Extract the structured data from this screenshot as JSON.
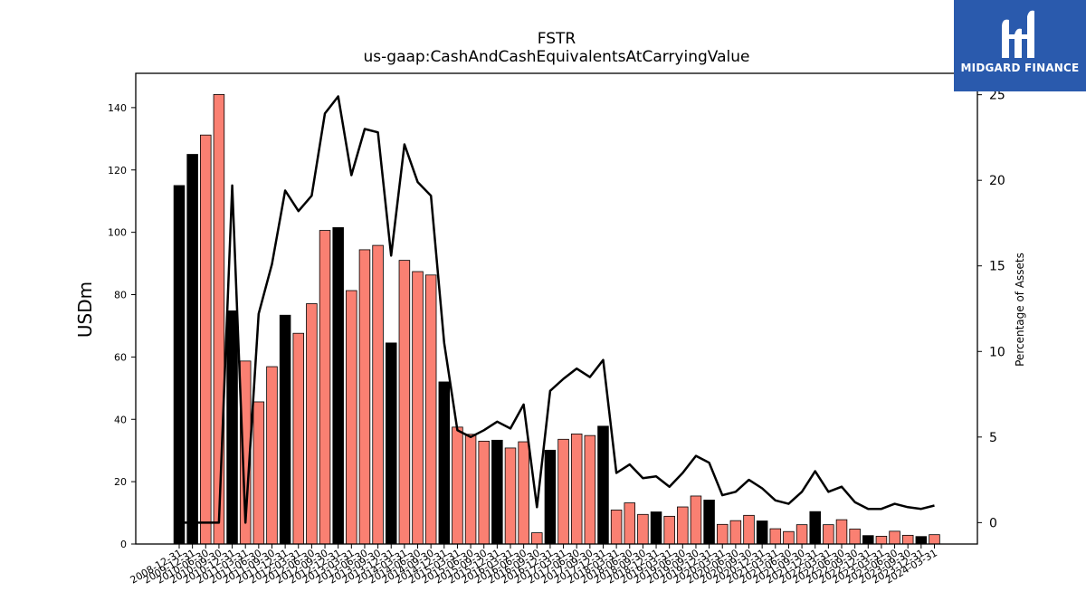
{
  "logo": {
    "text": "MIDGARD FINANCE",
    "bg": "#2a5aad"
  },
  "chart_data": {
    "type": "bar",
    "title": "FSTR",
    "subtitle": "us-gaap:CashAndCashEquivalentsAtCarryingValue",
    "ylabel": "USDm",
    "y2label": "Percentage of Assets",
    "ylim": [
      0,
      151
    ],
    "y2lim": [
      -1.25,
      26.25
    ],
    "yticks": [
      0,
      20,
      40,
      60,
      80,
      100,
      120,
      140
    ],
    "y2ticks": [
      0,
      5,
      10,
      15,
      20,
      25
    ],
    "colors": {
      "q4": "#000000",
      "other": "#fa8072",
      "line": "#000000"
    },
    "categories": [
      "2008-12-31",
      "2009-12-31",
      "2010-06-30",
      "2010-09-30",
      "2010-12-31",
      "2011-03-31",
      "2011-06-30",
      "2011-09-30",
      "2011-12-31",
      "2012-03-31",
      "2012-06-30",
      "2012-09-30",
      "2012-12-31",
      "2013-03-31",
      "2013-06-30",
      "2013-09-30",
      "2013-12-31",
      "2014-03-31",
      "2014-06-30",
      "2014-09-30",
      "2014-12-31",
      "2015-03-31",
      "2015-06-30",
      "2015-09-30",
      "2015-12-31",
      "2016-03-31",
      "2016-06-30",
      "2016-09-30",
      "2016-12-31",
      "2017-03-31",
      "2017-06-30",
      "2017-09-30",
      "2017-12-31",
      "2018-03-31",
      "2018-06-30",
      "2018-09-30",
      "2018-12-31",
      "2019-03-31",
      "2019-06-30",
      "2019-09-30",
      "2019-12-31",
      "2020-03-31",
      "2020-06-30",
      "2020-09-30",
      "2020-12-31",
      "2021-03-31",
      "2021-06-30",
      "2021-09-30",
      "2021-12-31",
      "2022-03-31",
      "2022-06-30",
      "2022-09-30",
      "2022-12-31",
      "2023-03-31",
      "2023-06-30",
      "2023-09-30",
      "2023-12-31",
      "2024-03-31"
    ],
    "series": [
      {
        "type": "bar",
        "values": [
          115.0,
          125.0,
          131.2,
          144.2,
          74.8,
          58.7,
          45.6,
          56.9,
          73.4,
          67.6,
          77.1,
          100.6,
          101.5,
          81.3,
          94.4,
          95.8,
          64.5,
          91.0,
          87.4,
          86.3,
          52.0,
          37.5,
          35.2,
          33.0,
          33.3,
          30.8,
          32.8,
          3.6,
          30.1,
          33.6,
          35.3,
          34.8,
          37.8,
          10.9,
          13.2,
          9.5,
          10.3,
          8.9,
          11.9,
          15.4,
          14.1,
          6.3,
          7.5,
          9.2,
          7.4,
          4.9,
          4.0,
          6.2,
          10.4,
          6.2,
          7.8,
          4.8,
          2.7,
          2.5,
          4.1,
          2.8,
          2.4,
          3.0
        ]
      },
      {
        "type": "line",
        "values": [
          0.0,
          0.0,
          0.0,
          0.0,
          19.7,
          0.0,
          12.2,
          15.1,
          19.4,
          18.2,
          19.1,
          23.9,
          24.9,
          20.3,
          23.0,
          22.8,
          15.6,
          22.1,
          19.9,
          19.1,
          10.5,
          5.4,
          5.0,
          5.4,
          5.9,
          5.5,
          6.9,
          0.9,
          7.7,
          8.4,
          9.0,
          8.5,
          9.5,
          2.9,
          3.4,
          2.6,
          2.7,
          2.1,
          2.9,
          3.9,
          3.5,
          1.6,
          1.8,
          2.5,
          2.0,
          1.3,
          1.1,
          1.8,
          3.0,
          1.8,
          2.1,
          1.2,
          0.8,
          0.8,
          1.1,
          0.9,
          0.8,
          1.0
        ]
      }
    ]
  }
}
